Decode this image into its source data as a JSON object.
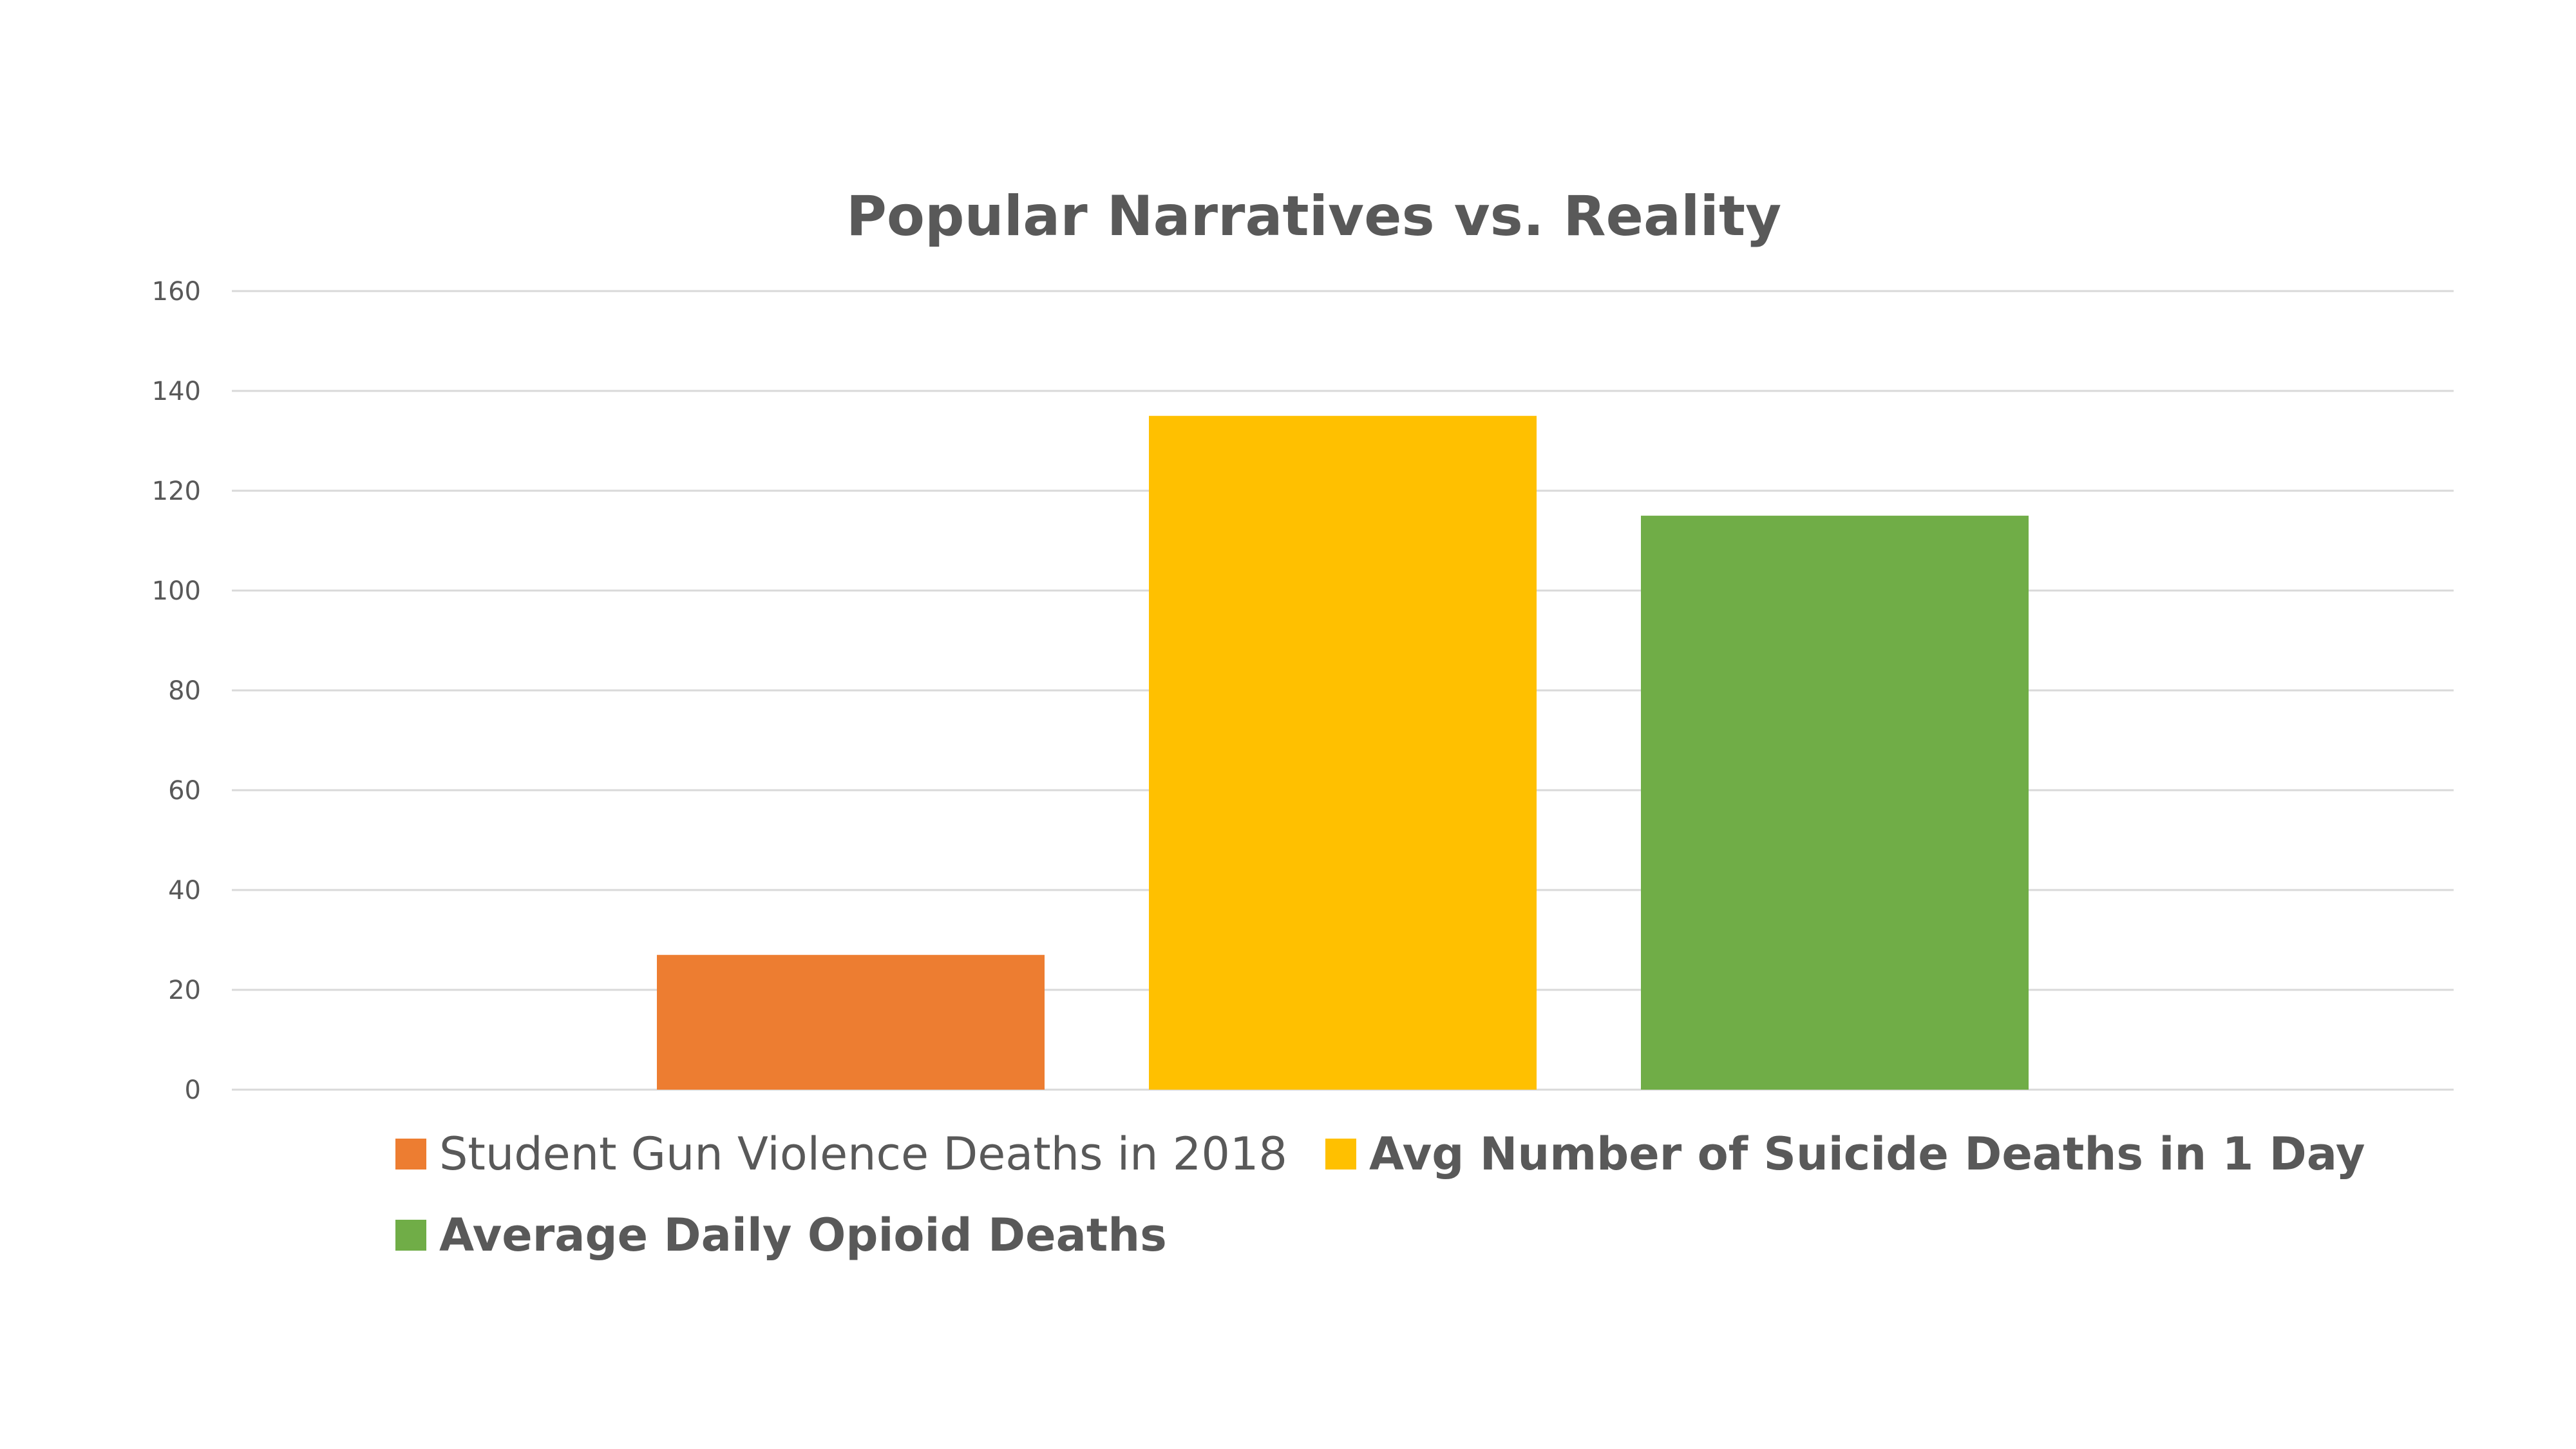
{
  "chart_data": {
    "type": "bar",
    "title": "Popular Narratives vs. Reality",
    "xlabel": "",
    "ylabel": "",
    "ylim": [
      0,
      160
    ],
    "yticks": [
      0,
      20,
      40,
      60,
      80,
      100,
      120,
      140,
      160
    ],
    "grid": true,
    "legend_position": "bottom",
    "categories": [
      ""
    ],
    "series": [
      {
        "name": "Student Gun Violence Deaths in 2018",
        "values": [
          27
        ],
        "color": "#ED7D31",
        "legend_bold": false
      },
      {
        "name": "Avg Number of Suicide Deaths in 1 Day",
        "values": [
          135
        ],
        "color": "#FFC000",
        "legend_bold": true
      },
      {
        "name": "Average Daily Opioid Deaths",
        "values": [
          115
        ],
        "color": "#70AD47",
        "legend_bold": true
      }
    ]
  },
  "colors": {
    "text": "#595959",
    "gridline": "#D9D9D9",
    "background": "#FFFFFF"
  }
}
